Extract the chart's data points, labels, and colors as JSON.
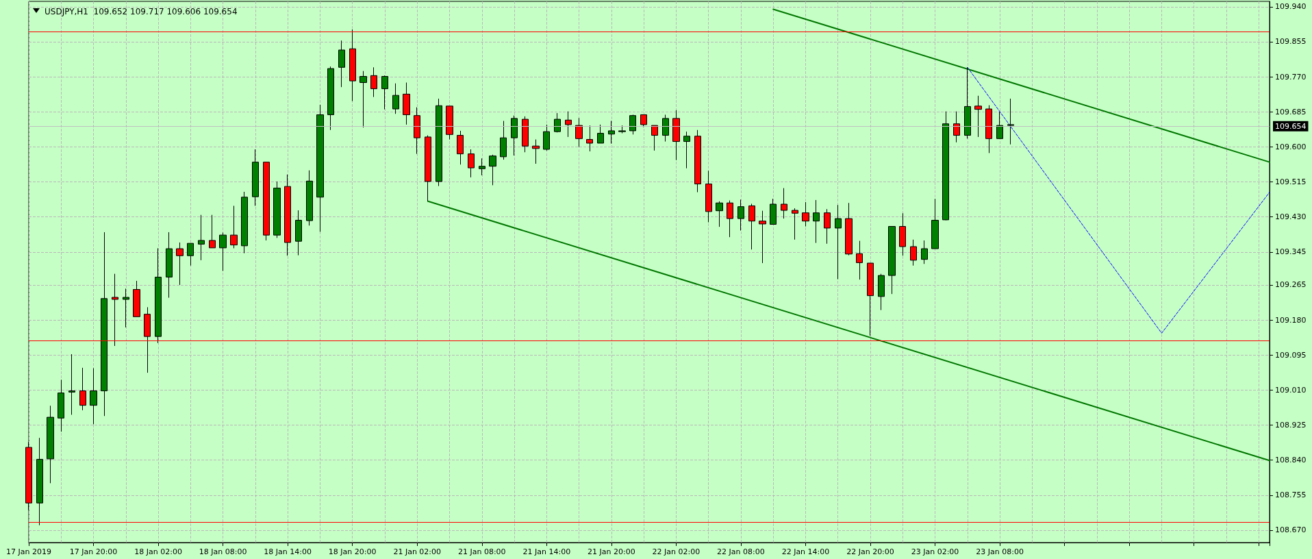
{
  "chart_data": {
    "type": "candlestick",
    "title": "USDJPY,H1  109.652 109.717 109.606 109.654",
    "categories": [
      "17 Jan 2019",
      null,
      null,
      null,
      null,
      null,
      "17 Jan 20:00",
      null,
      null,
      null,
      null,
      null,
      "18 Jan 02:00",
      null,
      null,
      null,
      null,
      null,
      "18 Jan 08:00",
      null,
      null,
      null,
      null,
      null,
      "18 Jan 14:00",
      null,
      null,
      null,
      null,
      null,
      "18 Jan 20:00",
      null,
      null,
      null,
      null,
      null,
      "21 Jan 02:00",
      null,
      null,
      null,
      null,
      null,
      "21 Jan 08:00",
      null,
      null,
      null,
      null,
      null,
      "21 Jan 14:00",
      null,
      null,
      null,
      null,
      null,
      "21 Jan 20:00",
      null,
      null,
      null,
      null,
      null,
      "22 Jan 02:00",
      null,
      null,
      null,
      null,
      null,
      "22 Jan 08:00",
      null,
      null,
      null,
      null,
      null,
      "22 Jan 14:00",
      null,
      null,
      null,
      null,
      null,
      "22 Jan 20:00",
      null,
      null,
      null,
      null,
      null,
      "23 Jan 02:00",
      null,
      null,
      null,
      null,
      null,
      "23 Jan 08:00",
      null,
      null,
      null,
      null,
      null,
      null,
      null,
      null,
      null,
      null,
      null,
      null,
      null,
      null,
      null,
      null,
      null,
      null,
      null,
      null,
      null,
      null,
      null,
      null,
      null
    ],
    "ohlc": [
      [
        108.871,
        108.884,
        108.719,
        108.736
      ],
      [
        108.736,
        108.894,
        108.682,
        108.842
      ],
      [
        108.843,
        108.972,
        108.784,
        108.944
      ],
      [
        108.942,
        109.035,
        108.909,
        109.003
      ],
      [
        109.005,
        109.097,
        108.95,
        109.008
      ],
      [
        109.008,
        109.064,
        108.961,
        108.973
      ],
      [
        108.973,
        109.063,
        108.927,
        109.008
      ],
      [
        109.008,
        109.393,
        108.947,
        109.232
      ],
      [
        109.235,
        109.292,
        109.117,
        109.23
      ],
      [
        109.23,
        109.256,
        109.162,
        109.235
      ],
      [
        109.254,
        109.275,
        109.188,
        109.188
      ],
      [
        109.194,
        109.211,
        109.052,
        109.14
      ],
      [
        109.14,
        109.354,
        109.124,
        109.284
      ],
      [
        109.284,
        109.393,
        109.234,
        109.353
      ],
      [
        109.353,
        109.368,
        109.265,
        109.336
      ],
      [
        109.336,
        109.366,
        109.312,
        109.366
      ],
      [
        109.364,
        109.435,
        109.325,
        109.373
      ],
      [
        109.373,
        109.435,
        109.355,
        109.355
      ],
      [
        109.355,
        109.392,
        109.299,
        109.386
      ],
      [
        109.386,
        109.457,
        109.354,
        109.362
      ],
      [
        109.36,
        109.491,
        109.342,
        109.478
      ],
      [
        109.479,
        109.594,
        109.457,
        109.563
      ],
      [
        109.563,
        109.563,
        109.373,
        109.386
      ],
      [
        109.386,
        109.516,
        109.379,
        109.5
      ],
      [
        109.504,
        109.533,
        109.336,
        109.368
      ],
      [
        109.371,
        109.446,
        109.337,
        109.422
      ],
      [
        109.421,
        109.543,
        109.409,
        109.517
      ],
      [
        109.478,
        109.702,
        109.394,
        109.678
      ],
      [
        109.678,
        109.795,
        109.641,
        109.79
      ],
      [
        109.793,
        109.858,
        109.745,
        109.835
      ],
      [
        109.838,
        109.885,
        109.711,
        109.76
      ],
      [
        109.756,
        109.784,
        109.647,
        109.771
      ],
      [
        109.773,
        109.793,
        109.721,
        109.741
      ],
      [
        109.741,
        109.773,
        109.691,
        109.771
      ],
      [
        109.692,
        109.754,
        109.68,
        109.725
      ],
      [
        109.728,
        109.756,
        109.654,
        109.678
      ],
      [
        109.676,
        109.696,
        109.583,
        109.622
      ],
      [
        109.624,
        109.628,
        109.468,
        109.516
      ],
      [
        109.516,
        109.717,
        109.505,
        109.7
      ],
      [
        109.699,
        109.699,
        109.618,
        109.63
      ],
      [
        109.628,
        109.639,
        109.557,
        109.583
      ],
      [
        109.583,
        109.594,
        109.526,
        109.549
      ],
      [
        109.547,
        109.572,
        109.531,
        109.553
      ],
      [
        109.553,
        109.581,
        109.507,
        109.578
      ],
      [
        109.576,
        109.663,
        109.569,
        109.622
      ],
      [
        109.622,
        109.676,
        109.579,
        109.669
      ],
      [
        109.667,
        109.674,
        109.587,
        109.602
      ],
      [
        109.602,
        109.618,
        109.559,
        109.596
      ],
      [
        109.594,
        109.654,
        109.591,
        109.637
      ],
      [
        109.637,
        109.682,
        109.635,
        109.667
      ],
      [
        109.665,
        109.686,
        109.624,
        109.654
      ],
      [
        109.652,
        109.67,
        109.6,
        109.62
      ],
      [
        109.618,
        109.652,
        109.589,
        109.609
      ],
      [
        109.609,
        109.654,
        109.609,
        109.633
      ],
      [
        109.631,
        109.663,
        109.608,
        109.639
      ],
      [
        109.637,
        109.652,
        109.633,
        109.639
      ],
      [
        109.639,
        109.678,
        109.63,
        109.676
      ],
      [
        109.678,
        109.678,
        109.648,
        109.654
      ],
      [
        109.652,
        109.652,
        109.591,
        109.628
      ],
      [
        109.628,
        109.678,
        109.613,
        109.669
      ],
      [
        109.669,
        109.689,
        109.568,
        109.613
      ],
      [
        109.613,
        109.637,
        109.548,
        109.626
      ],
      [
        109.626,
        109.641,
        109.49,
        109.51
      ],
      [
        109.51,
        109.542,
        109.417,
        109.443
      ],
      [
        109.445,
        109.468,
        109.406,
        109.464
      ],
      [
        109.464,
        109.47,
        109.381,
        109.426
      ],
      [
        109.426,
        109.472,
        109.397,
        109.455
      ],
      [
        109.457,
        109.462,
        109.351,
        109.42
      ],
      [
        109.42,
        109.445,
        109.318,
        109.413
      ],
      [
        109.412,
        109.474,
        109.412,
        109.461
      ],
      [
        109.461,
        109.5,
        109.426,
        109.446
      ],
      [
        109.446,
        109.451,
        109.375,
        109.439
      ],
      [
        109.44,
        109.466,
        109.407,
        109.42
      ],
      [
        109.42,
        109.471,
        109.367,
        109.44
      ],
      [
        109.44,
        109.449,
        109.365,
        109.403
      ],
      [
        109.403,
        109.459,
        109.279,
        109.426
      ],
      [
        109.426,
        109.464,
        109.337,
        109.34
      ],
      [
        109.341,
        109.372,
        109.278,
        109.319
      ],
      [
        109.318,
        109.318,
        109.142,
        109.239
      ],
      [
        109.237,
        109.292,
        109.204,
        109.288
      ],
      [
        109.288,
        109.407,
        109.243,
        109.407
      ],
      [
        109.407,
        109.439,
        109.336,
        109.358
      ],
      [
        109.358,
        109.375,
        109.312,
        109.325
      ],
      [
        109.327,
        109.373,
        109.316,
        109.353
      ],
      [
        109.353,
        109.474,
        109.353,
        109.422
      ],
      [
        109.423,
        109.686,
        109.422,
        109.656
      ],
      [
        109.656,
        109.686,
        109.611,
        109.628
      ],
      [
        109.628,
        109.793,
        109.62,
        109.698
      ],
      [
        109.699,
        109.724,
        109.624,
        109.691
      ],
      [
        109.692,
        109.701,
        109.585,
        109.62
      ],
      [
        109.62,
        109.685,
        109.62,
        109.652
      ],
      [
        109.652,
        109.717,
        109.606,
        109.654
      ],
      null,
      null,
      null,
      null,
      null,
      null,
      null,
      null,
      null,
      null,
      null,
      null,
      null,
      null,
      null,
      null,
      null,
      null,
      null,
      null,
      null,
      null,
      null,
      null
    ],
    "colors": [
      "#ff0000",
      "#008000",
      "#008000",
      "#008000",
      "#008000",
      "#ff0000",
      "#008000",
      "#008000",
      "#ff0000",
      "#008000",
      "#ff0000",
      "#ff0000",
      "#008000",
      "#008000",
      "#ff0000",
      "#008000",
      "#008000",
      "#ff0000",
      "#008000",
      "#ff0000",
      "#008000",
      "#008000",
      "#ff0000",
      "#008000",
      "#ff0000",
      "#008000",
      "#008000",
      "#008000",
      "#008000",
      "#008000",
      "#ff0000",
      "#008000",
      "#ff0000",
      "#008000",
      "#008000",
      "#ff0000",
      "#ff0000",
      "#ff0000",
      "#008000",
      "#ff0000",
      "#ff0000",
      "#ff0000",
      "#008000",
      "#008000",
      "#008000",
      "#008000",
      "#ff0000",
      "#ff0000",
      "#008000",
      "#008000",
      "#ff0000",
      "#ff0000",
      "#ff0000",
      "#008000",
      "#008000",
      "#008000",
      "#008000",
      "#ff0000",
      "#ff0000",
      "#008000",
      "#ff0000",
      "#008000",
      "#ff0000",
      "#ff0000",
      "#008000",
      "#ff0000",
      "#008000",
      "#ff0000",
      "#ff0000",
      "#008000",
      "#ff0000",
      "#ff0000",
      "#ff0000",
      "#008000",
      "#ff0000",
      "#008000",
      "#ff0000",
      "#ff0000",
      "#ff0000",
      "#008000",
      "#008000",
      "#ff0000",
      "#ff0000",
      "#008000",
      "#008000",
      "#008000",
      "#ff0000",
      "#008000",
      "#ff0000",
      "#ff0000",
      "#008000",
      "#008000",
      null,
      null,
      null,
      null,
      null,
      null,
      null,
      null,
      null,
      null,
      null,
      null,
      null,
      null,
      null,
      null,
      null,
      null,
      null,
      null,
      null,
      null,
      null,
      null
    ],
    "series": [
      {
        "type": "line",
        "color": "#007800",
        "line_style": "solid",
        "values": [
          null,
          null,
          null,
          null,
          null,
          null,
          null,
          null,
          null,
          null,
          null,
          null,
          null,
          null,
          null,
          null,
          null,
          null,
          null,
          null,
          null,
          null,
          null,
          null,
          null,
          null,
          null,
          null,
          null,
          null,
          null,
          null,
          null,
          null,
          null,
          null,
          null,
          null,
          null,
          null,
          null,
          null,
          null,
          null,
          null,
          null,
          null,
          null,
          null,
          null,
          null,
          null,
          null,
          null,
          null,
          null,
          null,
          null,
          null,
          null,
          null,
          null,
          null,
          null,
          null,
          null,
          null,
          null,
          null,
          109.934,
          null,
          null,
          null,
          null,
          null,
          null,
          null,
          null,
          null,
          null,
          null,
          null,
          null,
          null,
          null,
          null,
          null,
          null,
          null,
          null,
          null,
          null,
          null,
          null,
          null,
          null,
          null,
          null,
          null,
          null,
          null,
          null,
          null,
          null,
          null,
          null,
          null,
          null,
          null,
          null,
          null,
          null,
          null,
          null,
          null,
          109.563
        ]
      },
      {
        "type": "line",
        "color": "#007800",
        "line_style": "solid",
        "values": [
          null,
          null,
          null,
          null,
          null,
          null,
          null,
          null,
          null,
          null,
          null,
          null,
          null,
          null,
          null,
          null,
          null,
          null,
          null,
          null,
          null,
          null,
          null,
          null,
          null,
          null,
          null,
          null,
          null,
          null,
          null,
          null,
          null,
          null,
          null,
          null,
          null,
          109.468,
          null,
          null,
          null,
          null,
          null,
          null,
          null,
          null,
          null,
          null,
          null,
          null,
          null,
          null,
          null,
          null,
          null,
          null,
          null,
          null,
          null,
          null,
          null,
          null,
          null,
          null,
          null,
          null,
          null,
          null,
          null,
          null,
          null,
          null,
          null,
          null,
          null,
          null,
          null,
          null,
          null,
          null,
          null,
          null,
          null,
          null,
          null,
          null,
          null,
          null,
          null,
          null,
          null,
          null,
          null,
          null,
          null,
          null,
          null,
          null,
          null,
          null,
          null,
          null,
          null,
          null,
          null,
          null,
          null,
          null,
          null,
          null,
          null,
          null,
          null,
          null,
          null,
          108.839
        ]
      },
      {
        "type": "line",
        "color": "#0000ff",
        "line_style": "dashed",
        "values": [
          null,
          null,
          null,
          null,
          null,
          null,
          null,
          null,
          null,
          null,
          null,
          null,
          null,
          null,
          null,
          null,
          null,
          null,
          null,
          null,
          null,
          null,
          null,
          null,
          null,
          null,
          null,
          null,
          null,
          null,
          null,
          null,
          null,
          null,
          null,
          null,
          null,
          null,
          null,
          null,
          null,
          null,
          null,
          null,
          null,
          null,
          null,
          null,
          null,
          null,
          null,
          null,
          null,
          null,
          null,
          null,
          null,
          null,
          null,
          null,
          null,
          null,
          null,
          null,
          null,
          null,
          null,
          null,
          null,
          null,
          null,
          null,
          null,
          null,
          null,
          null,
          null,
          null,
          null,
          null,
          null,
          null,
          null,
          null,
          null,
          null,
          null,
          109.793,
          null,
          null,
          null,
          null,
          null,
          null,
          null,
          null,
          null,
          null,
          null,
          null,
          null,
          null,
          null,
          null,
          null,
          109.148,
          null,
          null,
          null,
          null,
          null,
          null,
          null,
          null,
          null,
          109.49
        ]
      }
    ],
    "marker": "none",
    "ylim": [
      108.64,
      109.953
    ],
    "yticks": [
      {
        "value": 108.67,
        "label": "108.670"
      },
      {
        "value": 108.755,
        "label": "108.755"
      },
      {
        "value": 108.84,
        "label": "108.840"
      },
      {
        "value": 108.925,
        "label": "108.925"
      },
      {
        "value": 109.01,
        "label": "109.010"
      },
      {
        "value": 109.095,
        "label": "109.095"
      },
      {
        "value": 109.18,
        "label": "109.180"
      },
      {
        "value": 109.265,
        "label": "109.265"
      },
      {
        "value": 109.345,
        "label": "109.345"
      },
      {
        "value": 109.43,
        "label": "109.430"
      },
      {
        "value": 109.515,
        "label": "109.515"
      },
      {
        "value": 109.6,
        "label": "109.600"
      },
      {
        "value": 109.685,
        "label": "109.685"
      },
      {
        "value": 109.77,
        "label": "109.770"
      },
      {
        "value": 109.855,
        "label": "109.855"
      },
      {
        "value": 109.94,
        "label": "109.940"
      }
    ],
    "ref_lines": [
      {
        "axis": "y",
        "value": 109.882,
        "color": "#ff0000"
      },
      {
        "axis": "y",
        "value": 109.126,
        "color": "#ff0000"
      },
      {
        "axis": "y",
        "value": 108.689,
        "color": "#ff0000"
      },
      {
        "axis": "y",
        "value": 109.654,
        "label": "109.654",
        "color": "#c0c0c0"
      }
    ],
    "grid": true
  }
}
